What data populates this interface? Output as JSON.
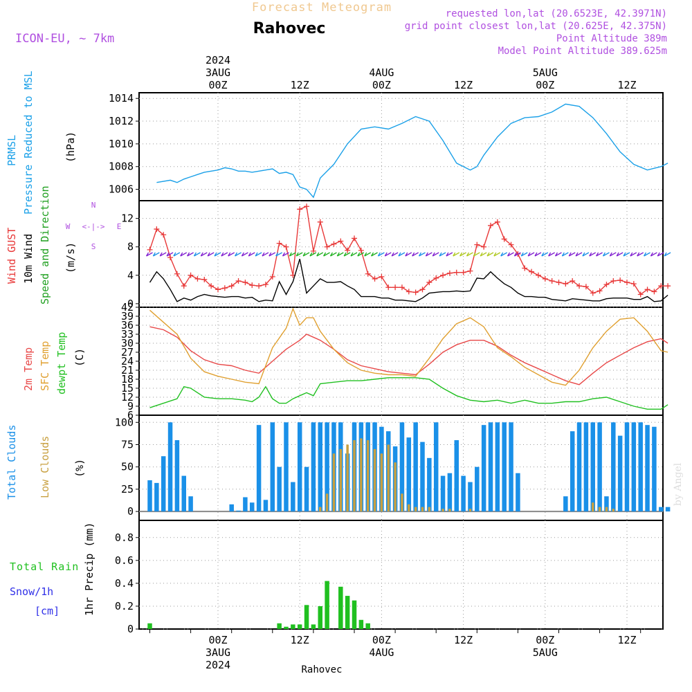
{
  "header": {
    "title": "Forecast Meteogram",
    "location": "Rahovec",
    "model": "ICON-EU, ~ 7km",
    "requested": "requested lon,lat (20.6523E, 42.3971N)",
    "grid_point": "grid point closest lon,lat (20.625E, 42.375N)",
    "point_altitude": "Point Altitude 389m",
    "model_altitude": "Model Point Altitude 389.625m",
    "footer_location": "Rahovec",
    "watermark": "by Angel"
  },
  "time_axis": {
    "top_labels": [
      {
        "h": 0,
        "lines": [
          "2024",
          "3AUG",
          "00Z"
        ]
      },
      {
        "h": 12,
        "lines": [
          "12Z"
        ]
      },
      {
        "h": 24,
        "lines": [
          "4AUG",
          "00Z"
        ]
      },
      {
        "h": 36,
        "lines": [
          "12Z"
        ]
      },
      {
        "h": 48,
        "lines": [
          "5AUG",
          "00Z"
        ]
      },
      {
        "h": 60,
        "lines": [
          "12Z"
        ]
      }
    ],
    "bottom_labels": [
      {
        "h": 0,
        "lines": [
          "00Z",
          "3AUG",
          "2024"
        ]
      },
      {
        "h": 12,
        "lines": [
          "12Z"
        ]
      },
      {
        "h": 24,
        "lines": [
          "00Z",
          "4AUG"
        ]
      },
      {
        "h": 36,
        "lines": [
          "12Z"
        ]
      },
      {
        "h": 48,
        "lines": [
          "00Z",
          "5AUG"
        ]
      },
      {
        "h": 60,
        "lines": [
          "12Z"
        ]
      }
    ]
  },
  "panels": {
    "pressure": {
      "label_a": "PRMSL",
      "label_b": "Pressure Reduced to MSL",
      "unit": "(hPa)",
      "ticks": [
        "1006",
        "1008",
        "1010",
        "1012",
        "1014"
      ]
    },
    "wind": {
      "label_gust": "Wind GUST",
      "label_wind": "10m Wind",
      "label_dir": "Speed and Direction",
      "unit": "(m/s)",
      "ticks": [
        "0",
        "4",
        "8",
        "12"
      ],
      "compass": {
        "n": "N",
        "s": "S",
        "w": "W",
        "e": "E"
      }
    },
    "temp": {
      "label_2m": "2m Temp",
      "label_sfc": "SFC Temp",
      "label_dew": "dewpt Temp",
      "unit": "(C)",
      "ticks": [
        "6",
        "9",
        "12",
        "15",
        "18",
        "21",
        "24",
        "27",
        "30",
        "33",
        "36",
        "39",
        "42"
      ]
    },
    "clouds": {
      "label_total": "Total Clouds",
      "label_low": "Low Clouds",
      "unit": "(%)",
      "ticks": [
        "0",
        "25",
        "50",
        "75",
        "100"
      ]
    },
    "precip": {
      "label_rain": "Total Rain",
      "label_snow": "Snow/1h",
      "label_cm": "[cm]",
      "label_precip": "1hr Precip (mm)",
      "ticks": [
        "0",
        "0.2",
        "0.4",
        "0.6",
        "0.8"
      ]
    }
  },
  "colors": {
    "pressure": "#1aa0e8",
    "gust": "#e83838",
    "wind": "#000000",
    "t2m": "#e84848",
    "sfc": "#e0a030",
    "dew": "#20c020",
    "total_cloud": "#1a90e8",
    "low_cloud": "#c8a040",
    "rain": "#20c020",
    "snow": "#3030e8",
    "title": "#f0c890",
    "info": "#b050e0"
  },
  "chart_data": [
    {
      "type": "line",
      "name": "PRMSL",
      "x_hours": [
        -9,
        -7,
        -6,
        -5,
        -4,
        -3,
        -2,
        0,
        1,
        2,
        3,
        4,
        5,
        6,
        7,
        8,
        9,
        10,
        11,
        12,
        13,
        14,
        15,
        17,
        19,
        21,
        23,
        25,
        27,
        29,
        31,
        33,
        35,
        37,
        38,
        39,
        41,
        43,
        45,
        47,
        49,
        51,
        53,
        55,
        57,
        59,
        61,
        63,
        65,
        66
      ],
      "values": [
        1006.6,
        1006.8,
        1006.6,
        1006.9,
        1007.1,
        1007.3,
        1007.5,
        1007.7,
        1007.9,
        1007.8,
        1007.6,
        1007.6,
        1007.5,
        1007.6,
        1007.7,
        1007.8,
        1007.4,
        1007.5,
        1007.3,
        1006.2,
        1006.0,
        1005.3,
        1007.0,
        1008.2,
        1010.0,
        1011.3,
        1011.5,
        1011.3,
        1011.8,
        1012.4,
        1012.0,
        1010.3,
        1008.3,
        1007.7,
        1008.0,
        1009.0,
        1010.6,
        1011.8,
        1012.3,
        1012.4,
        1012.8,
        1013.5,
        1013.3,
        1012.3,
        1010.9,
        1009.3,
        1008.2,
        1007.7,
        1008.0,
        1008.3
      ],
      "ylim": [
        1005,
        1014.5
      ]
    },
    {
      "type": "line",
      "name": "Wind GUST",
      "x_hours": [
        -10,
        -9,
        -8,
        -7,
        -6,
        -5,
        -4,
        -3,
        -2,
        -1,
        0,
        1,
        2,
        3,
        4,
        5,
        6,
        7,
        8,
        9,
        10,
        11,
        12,
        13,
        14,
        15,
        16,
        17,
        18,
        19,
        20,
        21,
        22,
        23,
        24,
        25,
        26,
        27,
        28,
        29,
        30,
        31,
        32,
        33,
        34,
        35,
        36,
        37,
        38,
        39,
        40,
        41,
        42,
        43,
        44,
        45,
        46,
        47,
        48,
        49,
        50,
        51,
        52,
        53,
        54,
        55,
        56,
        57,
        58,
        59,
        60,
        61,
        62,
        63,
        64,
        65,
        66
      ],
      "values": [
        7.6,
        10.5,
        9.7,
        6.5,
        4.2,
        2.5,
        4.0,
        3.5,
        3.4,
        2.5,
        2.0,
        2.2,
        2.5,
        3.2,
        3.0,
        2.6,
        2.5,
        2.7,
        3.8,
        8.5,
        8.0,
        4.0,
        13.3,
        13.7,
        7.4,
        11.5,
        8.0,
        8.4,
        8.8,
        7.5,
        9.2,
        7.5,
        4.2,
        3.5,
        3.8,
        2.3,
        2.3,
        2.3,
        1.7,
        1.6,
        2.0,
        3.0,
        3.6,
        4.0,
        4.3,
        4.4,
        4.4,
        4.6,
        8.3,
        8.0,
        11.0,
        11.5,
        9.1,
        8.3,
        7.0,
        5.0,
        4.5,
        4.0,
        3.5,
        3.2,
        3.0,
        2.8,
        3.2,
        2.5,
        2.4,
        1.5,
        1.8,
        2.7,
        3.2,
        3.3,
        3.0,
        2.8,
        1.3,
        2.0,
        1.7,
        2.5,
        2.5
      ],
      "ylim": [
        -0.5,
        14.5
      ]
    },
    {
      "type": "line",
      "name": "10m Wind",
      "x_hours": [
        -10,
        -9,
        -8,
        -7,
        -6,
        -5,
        -4,
        -3,
        -2,
        -1,
        0,
        1,
        2,
        3,
        4,
        5,
        6,
        7,
        8,
        9,
        10,
        11,
        12,
        13,
        14,
        15,
        16,
        17,
        18,
        19,
        20,
        21,
        22,
        23,
        24,
        25,
        26,
        27,
        28,
        29,
        30,
        31,
        32,
        33,
        34,
        35,
        36,
        37,
        38,
        39,
        40,
        41,
        42,
        43,
        44,
        45,
        46,
        47,
        48,
        49,
        50,
        51,
        52,
        53,
        54,
        55,
        56,
        57,
        58,
        59,
        60,
        61,
        62,
        63,
        64,
        65,
        66
      ],
      "values": [
        3.0,
        4.5,
        3.5,
        2.0,
        0.3,
        0.8,
        0.5,
        1.0,
        1.3,
        1.1,
        1.0,
        0.9,
        1.0,
        1.0,
        0.8,
        0.9,
        0.3,
        0.5,
        0.4,
        3.1,
        1.3,
        3.1,
        6.3,
        1.5,
        2.5,
        3.5,
        3.0,
        3.0,
        3.1,
        2.5,
        2.0,
        1.0,
        1.0,
        1.0,
        0.8,
        0.8,
        0.5,
        0.5,
        0.4,
        0.3,
        0.8,
        1.5,
        1.6,
        1.7,
        1.7,
        1.8,
        1.7,
        1.8,
        3.6,
        3.5,
        4.5,
        3.6,
        2.8,
        2.3,
        1.5,
        1.0,
        1.0,
        0.9,
        0.9,
        0.6,
        0.5,
        0.4,
        0.7,
        0.6,
        0.5,
        0.4,
        0.4,
        0.7,
        0.8,
        0.8,
        0.8,
        0.6,
        0.6,
        1.0,
        0.3,
        0.4,
        1.2
      ],
      "ylim": [
        -0.5,
        14.5
      ]
    },
    {
      "type": "line",
      "name": "2m Temp",
      "x_hours": [
        -10,
        -8,
        -6,
        -4,
        -2,
        0,
        2,
        4,
        6,
        8,
        10,
        12,
        13,
        14,
        15,
        17,
        19,
        21,
        23,
        25,
        27,
        29,
        31,
        33,
        35,
        37,
        39,
        41,
        43,
        45,
        47,
        49,
        51,
        53,
        55,
        57,
        59,
        61,
        63,
        65,
        66
      ],
      "values": [
        35.5,
        34.5,
        32.0,
        27.5,
        24.5,
        23.0,
        22.5,
        21.0,
        20.0,
        24.0,
        28.0,
        31.0,
        33.0,
        32.0,
        31.0,
        28.0,
        24.5,
        22.5,
        21.5,
        20.5,
        20.0,
        19.5,
        23.0,
        27.0,
        29.5,
        31.0,
        31.0,
        29.0,
        26.0,
        23.5,
        21.5,
        19.5,
        17.5,
        16.2,
        20.0,
        23.5,
        26.0,
        28.5,
        30.5,
        31.5,
        30.0
      ],
      "ylim": [
        6,
        42
      ]
    },
    {
      "type": "line",
      "name": "SFC Temp",
      "x_hours": [
        -10,
        -8,
        -6,
        -4,
        -2,
        0,
        2,
        4,
        6,
        8,
        10,
        11,
        12,
        13,
        14,
        15,
        17,
        19,
        21,
        23,
        25,
        27,
        29,
        31,
        33,
        35,
        37,
        39,
        41,
        43,
        45,
        47,
        49,
        51,
        53,
        55,
        57,
        59,
        61,
        63,
        65,
        66
      ],
      "values": [
        41.0,
        37.0,
        33.0,
        25.0,
        20.5,
        19.0,
        18.0,
        17.0,
        16.5,
        28.5,
        35.0,
        41.5,
        36.0,
        38.5,
        38.5,
        34.0,
        28.0,
        23.5,
        21.0,
        20.0,
        19.5,
        19.5,
        19.0,
        25.0,
        31.5,
        36.5,
        38.5,
        35.5,
        28.5,
        25.5,
        22.0,
        19.5,
        17.0,
        16.0,
        21.0,
        28.5,
        34.0,
        38.0,
        38.5,
        34.0,
        27.5,
        27.0
      ],
      "ylim": [
        6,
        42
      ]
    },
    {
      "type": "line",
      "name": "dewpt Temp",
      "x_hours": [
        -10,
        -8,
        -6,
        -5,
        -4,
        -2,
        0,
        2,
        4,
        5,
        6,
        7,
        8,
        9,
        10,
        11,
        12,
        13,
        14,
        15,
        17,
        19,
        21,
        23,
        25,
        27,
        29,
        31,
        33,
        35,
        37,
        39,
        41,
        43,
        45,
        47,
        49,
        51,
        53,
        55,
        57,
        59,
        61,
        63,
        65,
        66
      ],
      "values": [
        8.5,
        10.0,
        11.5,
        15.5,
        15.0,
        12.0,
        11.5,
        11.5,
        11.0,
        10.5,
        12.0,
        15.5,
        11.5,
        10.0,
        10.0,
        11.5,
        12.5,
        13.5,
        12.5,
        16.5,
        17.0,
        17.5,
        17.5,
        18.0,
        18.5,
        18.5,
        18.5,
        18.0,
        15.0,
        12.5,
        11.0,
        10.5,
        11.0,
        10.0,
        11.0,
        10.0,
        10.0,
        10.5,
        10.5,
        11.5,
        12.0,
        10.5,
        9.0,
        8.0,
        8.0,
        9.5
      ],
      "ylim": [
        6,
        42
      ]
    },
    {
      "type": "bar",
      "name": "Total Clouds",
      "x_hours": [
        -10,
        -9,
        -8,
        -7,
        -6,
        -5,
        -4,
        -3,
        -2,
        -1,
        0,
        1,
        2,
        3,
        4,
        5,
        6,
        7,
        8,
        9,
        10,
        11,
        12,
        13,
        14,
        15,
        16,
        17,
        18,
        19,
        20,
        21,
        22,
        23,
        24,
        25,
        26,
        27,
        28,
        29,
        30,
        31,
        32,
        33,
        34,
        35,
        36,
        37,
        38,
        39,
        40,
        41,
        42,
        43,
        44,
        45,
        46,
        47,
        48,
        49,
        50,
        51,
        52,
        53,
        54,
        55,
        56,
        57,
        58,
        59,
        60,
        61,
        62,
        63,
        64,
        65,
        66
      ],
      "values": [
        35,
        32,
        62,
        100,
        80,
        40,
        17,
        0,
        0,
        0,
        0,
        0,
        8,
        1,
        16,
        10,
        97,
        13,
        100,
        50,
        100,
        33,
        100,
        50,
        100,
        100,
        100,
        100,
        100,
        65,
        100,
        100,
        100,
        100,
        95,
        90,
        73,
        100,
        83,
        100,
        78,
        60,
        100,
        40,
        43,
        80,
        40,
        33,
        50,
        97,
        100,
        100,
        100,
        100,
        43,
        0,
        0,
        0,
        0,
        0,
        0,
        17,
        90,
        100,
        100,
        100,
        100,
        17,
        100,
        85,
        100,
        100,
        100,
        97,
        95,
        5,
        5
      ],
      "ylim": [
        0,
        100
      ]
    },
    {
      "type": "bar",
      "name": "Low Clouds",
      "x_hours": [
        14,
        15,
        16,
        17,
        18,
        19,
        20,
        21,
        22,
        23,
        24,
        25,
        26,
        27,
        28,
        29,
        30,
        31,
        32,
        33,
        34,
        35,
        36,
        37,
        55,
        56,
        57,
        58,
        59
      ],
      "values": [
        0,
        5,
        20,
        65,
        70,
        75,
        80,
        82,
        80,
        70,
        65,
        75,
        55,
        20,
        8,
        5,
        5,
        5,
        0,
        3,
        3,
        0,
        0,
        3,
        10,
        5,
        5,
        3,
        0
      ],
      "ylim": [
        0,
        100
      ]
    },
    {
      "type": "bar",
      "name": "1hr Precip",
      "x_hours": [
        -10,
        9,
        10,
        11,
        12,
        13,
        14,
        15,
        16,
        18,
        19,
        20,
        21,
        22,
        23
      ],
      "values": [
        0.05,
        0.05,
        0.02,
        0.04,
        0.04,
        0.21,
        0.04,
        0.2,
        0.42,
        0.37,
        0.29,
        0.25,
        0.08,
        0.05,
        0
      ],
      "ylim": [
        0,
        0.95
      ]
    }
  ]
}
